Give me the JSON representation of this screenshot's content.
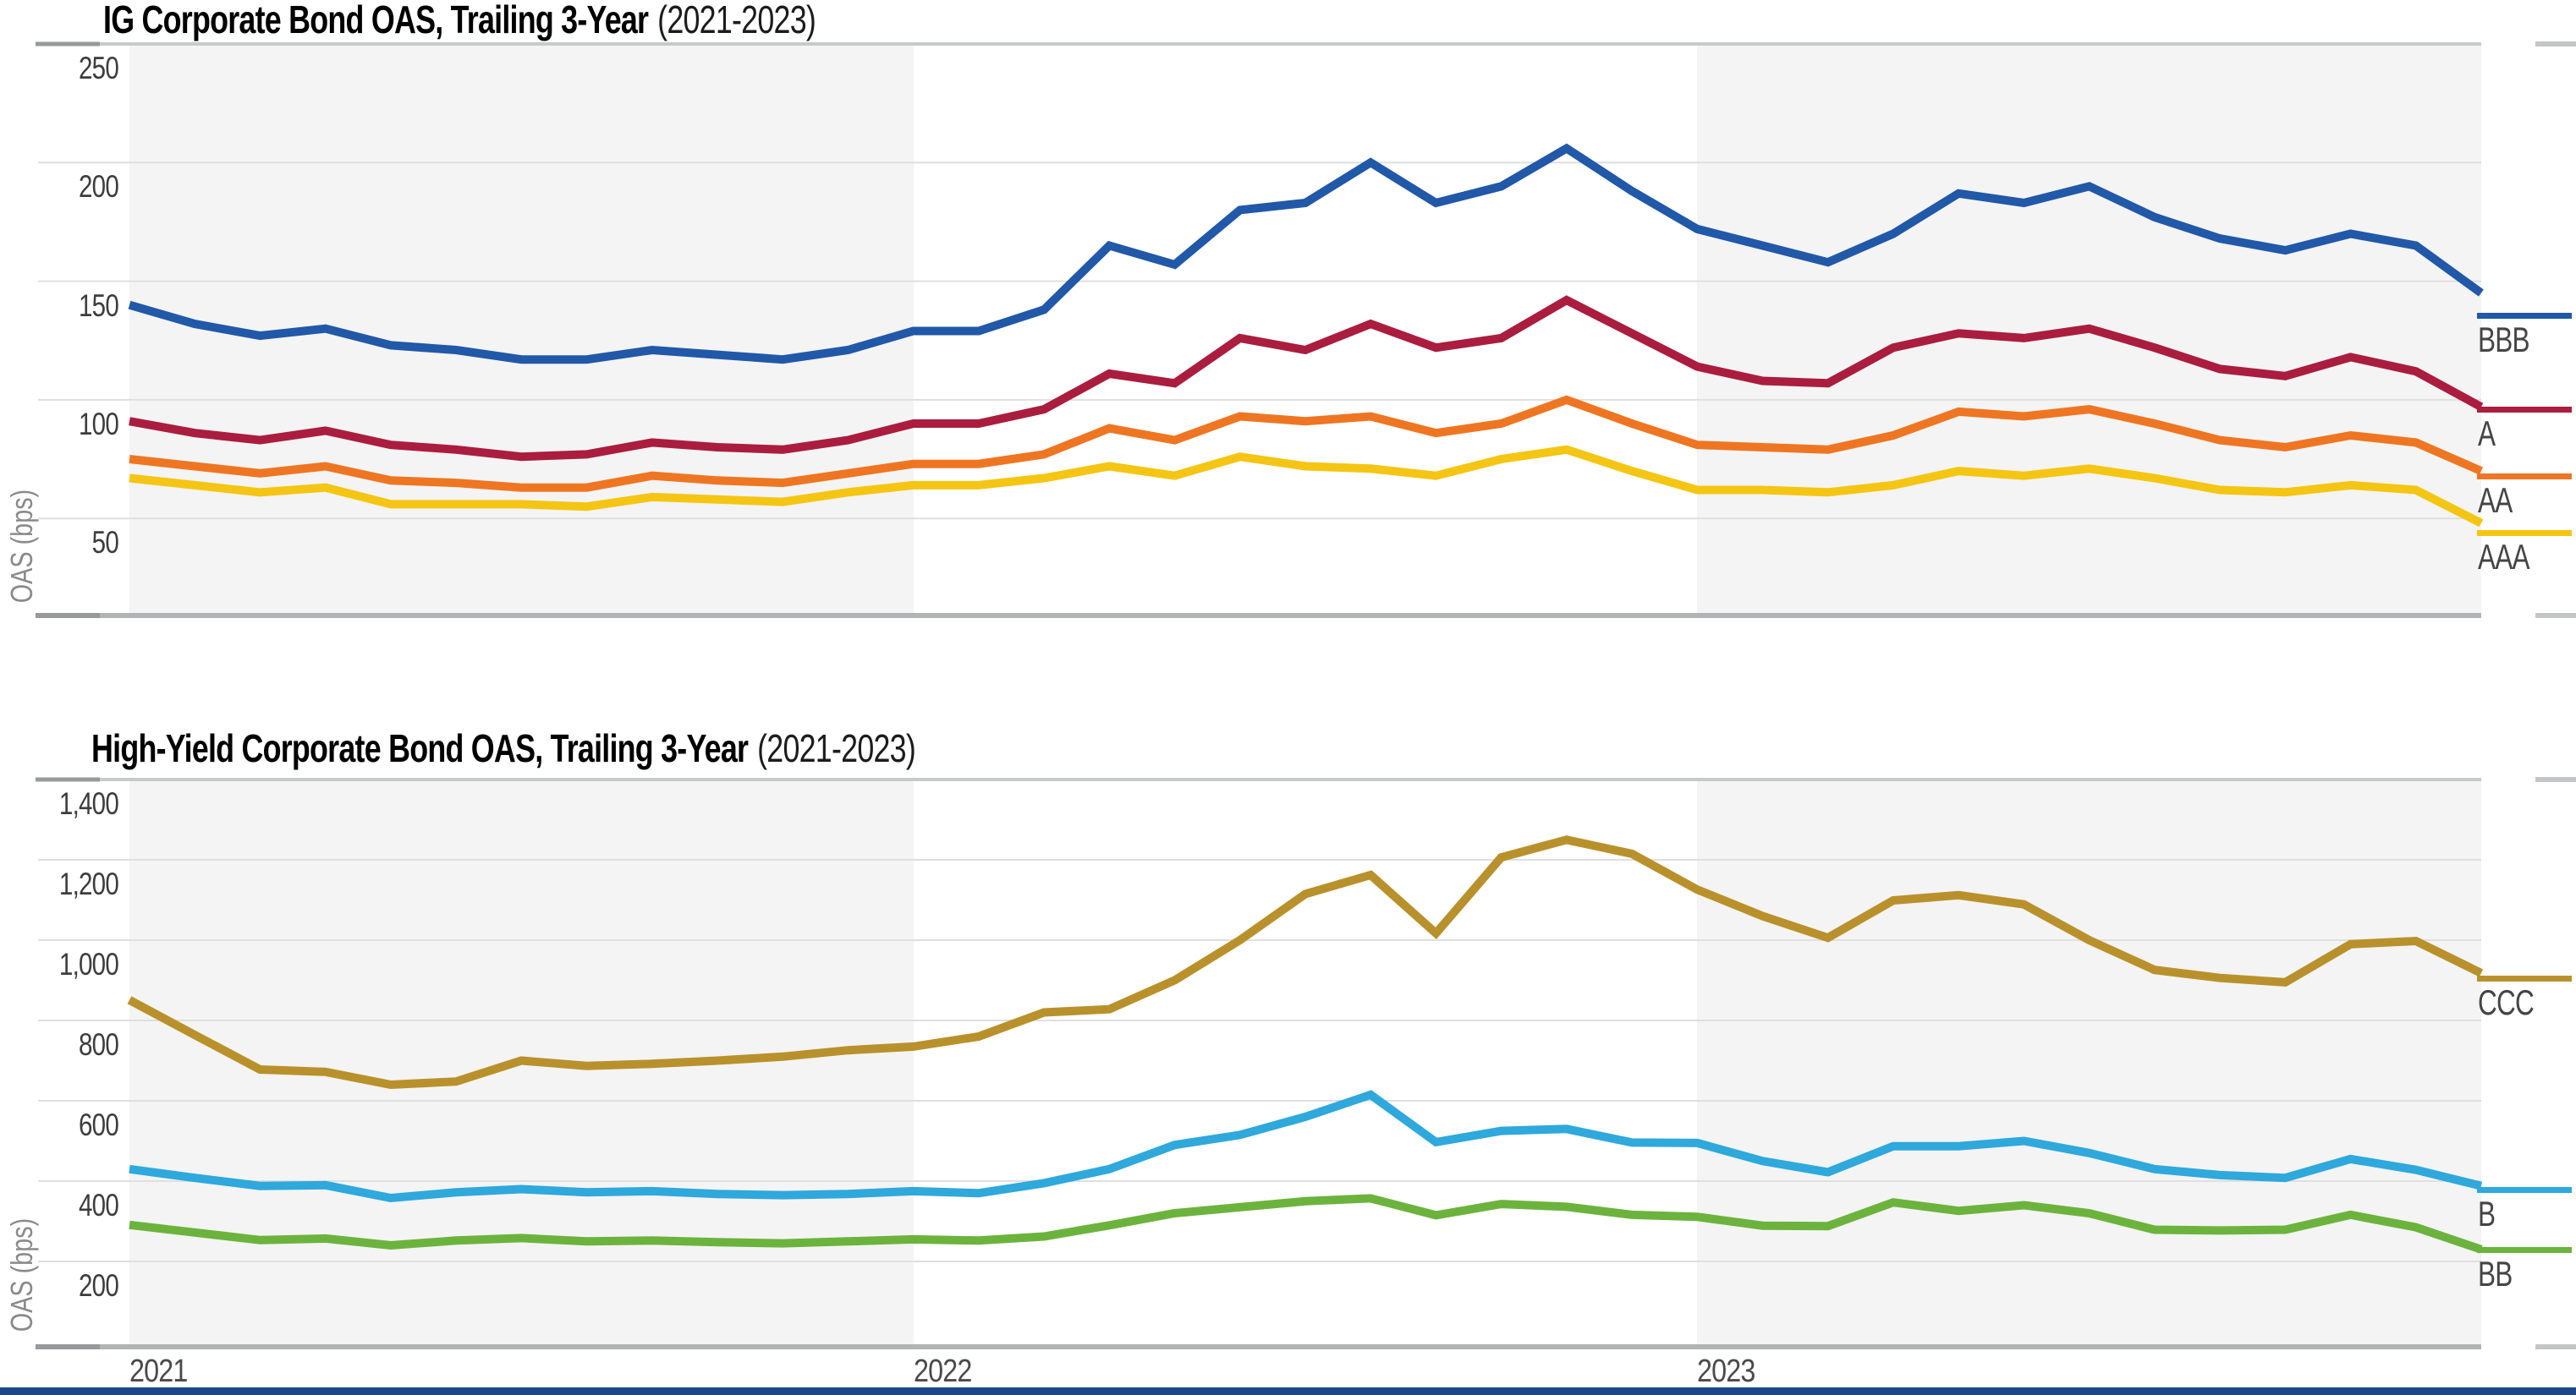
{
  "page": {
    "footer_bar_color": "#1C4889"
  },
  "palette": {
    "band": "#f4f4f4",
    "grid": "#dfdfdf",
    "border_top": "#c7c9cb",
    "axis_bottom": "#b1b3b5",
    "stub_dark": "#97999b",
    "stub_right": "#c3c5c7"
  },
  "chart_data": [
    {
      "type": "line",
      "title": "IG Corporate Bond OAS, Trailing 3-Year",
      "title_note": "(2021-2023)",
      "ylabel": "OAS (bps)",
      "ylim": [
        9,
        250
      ],
      "legend_position": "right",
      "shaded_year_bands": [
        "2021",
        "2023"
      ],
      "yticks": [
        {
          "v": 250,
          "label": "250"
        },
        {
          "v": 200,
          "label": "200"
        },
        {
          "v": 150,
          "label": "150"
        },
        {
          "v": 100,
          "label": "100"
        },
        {
          "v": 50,
          "label": "50"
        }
      ],
      "xticks": [],
      "x": [
        "Jan 2021",
        "Feb 2021",
        "Mar 2021",
        "Apr 2021",
        "May 2021",
        "Jun 2021",
        "Jul 2021",
        "Aug 2021",
        "Sep 2021",
        "Oct 2021",
        "Nov 2021",
        "Dec 2021",
        "Jan 2022",
        "Feb 2022",
        "Mar 2022",
        "Apr 2022",
        "May 2022",
        "Jun 2022",
        "Jul 2022",
        "Aug 2022",
        "Sep 2022",
        "Oct 2022",
        "Nov 2022",
        "Dec 2022",
        "Jan 2023",
        "Feb 2023",
        "Mar 2023",
        "Apr 2023",
        "May 2023",
        "Jun 2023",
        "Jul 2023",
        "Aug 2023",
        "Sep 2023",
        "Oct 2023",
        "Nov 2023",
        "Dec 2023",
        "Jan 2024"
      ],
      "series": [
        {
          "name": "BBB",
          "color": "#2158A8",
          "values": [
            140,
            132,
            127,
            130,
            123,
            121,
            117,
            117,
            121,
            119,
            117,
            121,
            129,
            129,
            138,
            165,
            157,
            180,
            183,
            200,
            183,
            190,
            206,
            188,
            172,
            165,
            158,
            170,
            187,
            183,
            190,
            177,
            168,
            163,
            170,
            165,
            145
          ]
        },
        {
          "name": "A",
          "color": "#AA1D3E",
          "values": [
            91,
            86,
            83,
            87,
            81,
            79,
            76,
            77,
            82,
            80,
            79,
            83,
            90,
            90,
            96,
            111,
            107,
            126,
            121,
            132,
            122,
            126,
            142,
            128,
            114,
            108,
            107,
            122,
            128,
            126,
            130,
            122,
            113,
            110,
            118,
            112,
            97
          ]
        },
        {
          "name": "AA",
          "color": "#EE7623",
          "values": [
            75,
            72,
            69,
            72,
            66,
            65,
            63,
            63,
            68,
            66,
            65,
            69,
            73,
            73,
            77,
            88,
            83,
            93,
            91,
            93,
            86,
            90,
            100,
            90,
            81,
            80,
            79,
            85,
            95,
            93,
            96,
            90,
            83,
            80,
            85,
            82,
            70
          ]
        },
        {
          "name": "AAA",
          "color": "#F5C514",
          "values": [
            67,
            64,
            61,
            63,
            56,
            56,
            56,
            55,
            59,
            58,
            57,
            61,
            64,
            64,
            67,
            72,
            68,
            76,
            72,
            71,
            68,
            75,
            79,
            70,
            62,
            62,
            61,
            64,
            70,
            68,
            71,
            67,
            62,
            61,
            64,
            62,
            48
          ]
        }
      ]
    },
    {
      "type": "line",
      "title": "High-Yield Corporate Bond OAS, Trailing 3-Year",
      "title_note": "(2021-2023)",
      "ylabel": "OAS (bps)",
      "ylim": [
        -10,
        1400
      ],
      "legend_position": "right",
      "shaded_year_bands": [
        "2021",
        "2023"
      ],
      "yticks": [
        {
          "v": 1400,
          "label": "1,400"
        },
        {
          "v": 1200,
          "label": "1,200"
        },
        {
          "v": 1000,
          "label": "1,000"
        },
        {
          "v": 800,
          "label": "800"
        },
        {
          "v": 600,
          "label": "600"
        },
        {
          "v": 400,
          "label": "400"
        },
        {
          "v": 200,
          "label": "200"
        }
      ],
      "xticks": [
        {
          "label": "2021"
        },
        {
          "label": "2022"
        },
        {
          "label": "2023"
        }
      ],
      "x": [
        "Jan 2021",
        "Feb 2021",
        "Mar 2021",
        "Apr 2021",
        "May 2021",
        "Jun 2021",
        "Jul 2021",
        "Aug 2021",
        "Sep 2021",
        "Oct 2021",
        "Nov 2021",
        "Dec 2021",
        "Jan 2022",
        "Feb 2022",
        "Mar 2022",
        "Apr 2022",
        "May 2022",
        "Jun 2022",
        "Jul 2022",
        "Aug 2022",
        "Sep 2022",
        "Oct 2022",
        "Nov 2022",
        "Dec 2022",
        "Jan 2023",
        "Feb 2023",
        "Mar 2023",
        "Apr 2023",
        "May 2023",
        "Jun 2023",
        "Jul 2023",
        "Aug 2023",
        "Sep 2023",
        "Oct 2023",
        "Nov 2023",
        "Dec 2023",
        "Jan 2024"
      ],
      "series": [
        {
          "name": "CCC",
          "color": "#B9912C",
          "values": [
            851,
            764,
            678,
            672,
            640,
            648,
            700,
            687,
            692,
            700,
            710,
            726,
            735,
            760,
            820,
            828,
            900,
            1000,
            1115,
            1162,
            1017,
            1206,
            1250,
            1215,
            1126,
            1060,
            1006,
            1099,
            1112,
            1089,
            1000,
            926,
            906,
            895,
            990,
            998,
            918
          ]
        },
        {
          "name": "B",
          "color": "#2FA8DC",
          "values": [
            430,
            408,
            388,
            390,
            358,
            372,
            380,
            372,
            375,
            368,
            365,
            368,
            375,
            370,
            395,
            430,
            490,
            515,
            560,
            615,
            497,
            525,
            530,
            496,
            495,
            450,
            422,
            487,
            487,
            500,
            470,
            430,
            415,
            408,
            455,
            428,
            388
          ]
        },
        {
          "name": "BB",
          "color": "#6CB33E",
          "values": [
            291,
            272,
            253,
            257,
            240,
            252,
            258,
            250,
            252,
            248,
            245,
            250,
            255,
            252,
            262,
            290,
            320,
            335,
            350,
            357,
            315,
            343,
            336,
            316,
            311,
            289,
            288,
            347,
            326,
            340,
            320,
            279,
            277,
            279,
            316,
            285,
            230
          ]
        }
      ]
    }
  ]
}
